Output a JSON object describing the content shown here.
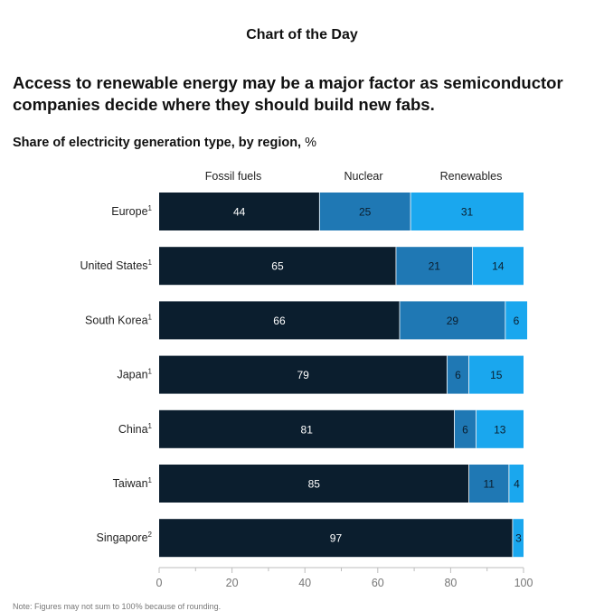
{
  "header": {
    "kicker": "Chart of the Day",
    "headline": "Access to renewable energy may be a major factor as semiconductor companies decide where they should build new fabs.",
    "subtitle": "Share of electricity generation type, by region,",
    "subtitle_unit": "%"
  },
  "chart_data": {
    "type": "bar",
    "orientation": "horizontal",
    "stacked": true,
    "categories": [
      "Europe",
      "United States",
      "South Korea",
      "Japan",
      "China",
      "Taiwan",
      "Singapore"
    ],
    "footnote_markers": [
      "1",
      "1",
      "1",
      "1",
      "1",
      "1",
      "2"
    ],
    "series": [
      {
        "name": "Fossil fuels",
        "color": "#0b1e2e",
        "label_color": "#ffffff",
        "values": [
          44,
          65,
          66,
          79,
          81,
          85,
          97
        ]
      },
      {
        "name": "Nuclear",
        "color": "#1f78b4",
        "label_color": "#0b1e2e",
        "values": [
          25,
          21,
          29,
          6,
          6,
          11,
          0
        ]
      },
      {
        "name": "Renewables",
        "color": "#1aa7ee",
        "label_color": "#0b1e2e",
        "values": [
          31,
          14,
          6,
          15,
          13,
          4,
          3
        ]
      }
    ],
    "xlim": [
      0,
      100
    ],
    "xticks": [
      0,
      20,
      40,
      60,
      80,
      100
    ],
    "legend_position": "top",
    "grid": false
  },
  "footer": {
    "note": "Note: Figures may not sum to 100% because of rounding."
  }
}
